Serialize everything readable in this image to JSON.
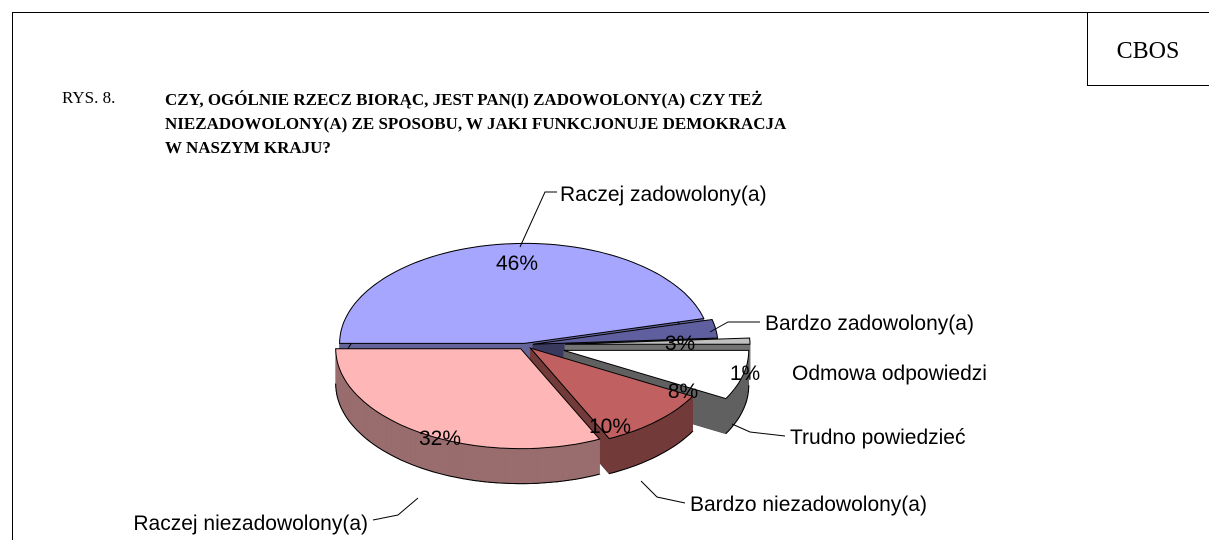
{
  "chart_data": {
    "type": "pie",
    "badge": "CBOS",
    "figure_label": "RYS. 8.",
    "title": "CZY, OGÓLNIE RZECZ BIORĄC, JEST PAN(I) ZADOWOLONY(A) CZY TEŻ\nNIEZADOWOLONY(A) ZE SPOSOBU, W JAKI FUNKCJONUJE DEMOKRACJA\nW NASZYM KRAJU?",
    "categories": [
      "Raczej zadowolony(a)",
      "Bardzo zadowolony(a)",
      "Odmowa odpowiedzi",
      "Trudno powiedzieć",
      "Bardzo niezadowolony(a)",
      "Raczej niezadowolony(a)"
    ],
    "values": [
      46,
      3,
      1,
      8,
      10,
      32
    ],
    "value_labels": [
      "46%",
      "3%",
      "1%",
      "8%",
      "10%",
      "32%"
    ],
    "colors": [
      "#a6a6ff",
      "#5f5f9f",
      "#c0c0c0",
      "#ffffff",
      "#c06060",
      "#ffb6b6"
    ]
  }
}
